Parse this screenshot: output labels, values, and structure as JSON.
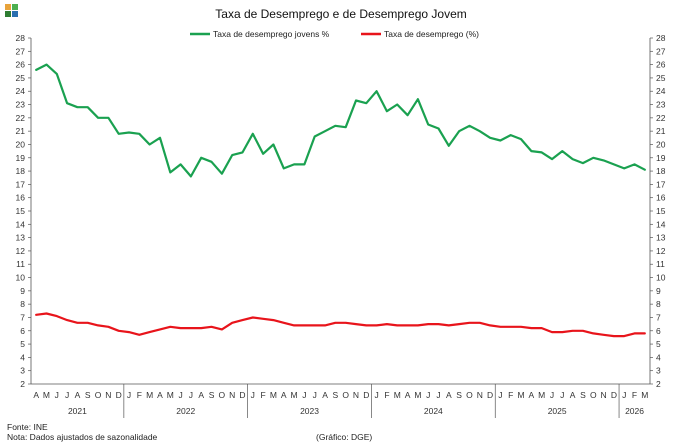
{
  "logo": {
    "colors": [
      "#e8a33b",
      "#4caf50",
      "#2e7d32",
      "#2a6fb0"
    ]
  },
  "footer": {
    "source": "Fonte: INE",
    "note": "Nota: Dados ajustados de sazonalidade",
    "credit": "(Gráfico: DGE)"
  },
  "chart_data": {
    "type": "line",
    "title": "Taxa de Desemprego e de Desemprego Jovem",
    "ylim": [
      2,
      28
    ],
    "y_ticks": [
      2,
      3,
      4,
      5,
      6,
      7,
      8,
      9,
      10,
      11,
      12,
      13,
      14,
      15,
      16,
      17,
      18,
      19,
      20,
      21,
      22,
      23,
      24,
      25,
      26,
      27,
      28
    ],
    "grid": false,
    "legend_position": "top-center",
    "x_months": [
      "A",
      "M",
      "J",
      "J",
      "A",
      "S",
      "O",
      "N",
      "D",
      "J",
      "F",
      "M",
      "A",
      "M",
      "J",
      "J",
      "A",
      "S",
      "O",
      "N",
      "D",
      "J",
      "F",
      "M",
      "A",
      "M",
      "J",
      "J",
      "A",
      "S",
      "O",
      "N",
      "D",
      "J",
      "F",
      "M",
      "A",
      "M",
      "J",
      "J",
      "A",
      "S",
      "O",
      "N",
      "D",
      "J",
      "F",
      "M",
      "A",
      "M",
      "J",
      "J",
      "A",
      "S",
      "O",
      "N",
      "D",
      "J",
      "F",
      "M"
    ],
    "x_years": [
      {
        "label": "2021",
        "start": 0,
        "end": 8
      },
      {
        "label": "2022",
        "start": 9,
        "end": 20
      },
      {
        "label": "2023",
        "start": 21,
        "end": 32
      },
      {
        "label": "2024",
        "start": 33,
        "end": 44
      },
      {
        "label": "2025",
        "start": 45,
        "end": 56
      },
      {
        "label": "2026",
        "start": 57,
        "end": 59
      }
    ],
    "series": [
      {
        "name": "Taxa de desemprego jovens %",
        "color": "#1aa150",
        "values": [
          25.6,
          26.0,
          25.3,
          23.1,
          22.8,
          22.8,
          22.0,
          22.0,
          20.8,
          20.9,
          20.8,
          20.0,
          20.5,
          17.9,
          18.5,
          17.6,
          19.0,
          18.7,
          17.8,
          19.2,
          19.4,
          20.8,
          19.3,
          20.0,
          18.2,
          18.5,
          18.5,
          20.6,
          21.0,
          21.4,
          21.3,
          23.3,
          23.1,
          24.0,
          22.5,
          23.0,
          22.2,
          23.4,
          21.5,
          21.2,
          19.9,
          21.0,
          21.4,
          21.0,
          20.5,
          20.3,
          20.7,
          20.4,
          19.5,
          19.4,
          18.9,
          19.5,
          18.9,
          18.6,
          19.0,
          18.8,
          18.5,
          18.2,
          18.5,
          18.1
        ]
      },
      {
        "name": "Taxa de desemprego (%)",
        "color": "#e8141b",
        "values": [
          7.2,
          7.3,
          7.1,
          6.8,
          6.6,
          6.6,
          6.4,
          6.3,
          6.0,
          5.9,
          5.7,
          5.9,
          6.1,
          6.3,
          6.2,
          6.2,
          6.2,
          6.3,
          6.1,
          6.6,
          6.8,
          7.0,
          6.9,
          6.8,
          6.6,
          6.4,
          6.4,
          6.4,
          6.4,
          6.6,
          6.6,
          6.5,
          6.4,
          6.4,
          6.5,
          6.4,
          6.4,
          6.4,
          6.5,
          6.5,
          6.4,
          6.5,
          6.6,
          6.6,
          6.4,
          6.3,
          6.3,
          6.3,
          6.2,
          6.2,
          5.9,
          5.9,
          6.0,
          6.0,
          5.8,
          5.7,
          5.6,
          5.6,
          5.8,
          5.8
        ]
      }
    ]
  }
}
